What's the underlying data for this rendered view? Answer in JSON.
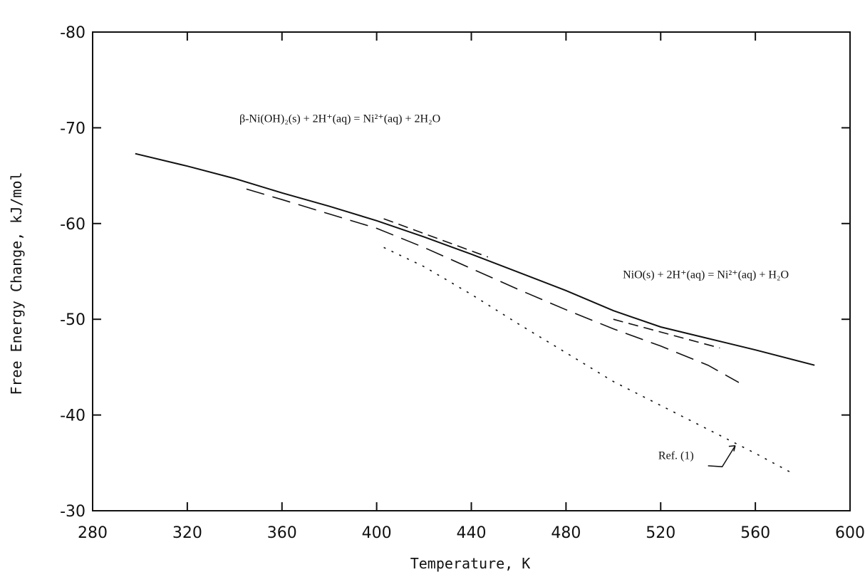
{
  "chart_data": {
    "type": "line",
    "xlabel": "Temperature, K",
    "ylabel": "Free Energy Change, kJ/mol",
    "xlim": [
      280,
      600
    ],
    "ylim": [
      -80,
      -30
    ],
    "y_axis_inverted": true,
    "x_ticks": [
      280,
      320,
      360,
      400,
      440,
      480,
      520,
      560,
      600
    ],
    "y_ticks": [
      -80,
      -70,
      -60,
      -50,
      -40,
      -30
    ],
    "grid": false,
    "legend": "none",
    "series": [
      {
        "style": "solid",
        "x": [
          298,
          320,
          340,
          360,
          380,
          400,
          420,
          440,
          460,
          480,
          500,
          520,
          540,
          560,
          585
        ],
        "y": [
          -67.3,
          -66.0,
          -64.7,
          -63.2,
          -61.8,
          -60.3,
          -58.6,
          -56.8,
          -54.9,
          -53.0,
          -50.9,
          -49.2,
          -48.0,
          -46.8,
          -45.2
        ]
      },
      {
        "style": "dashed",
        "x": [
          345,
          360,
          380,
          400,
          420,
          440,
          460,
          480,
          500,
          520,
          540,
          553
        ],
        "y": [
          -63.6,
          -62.5,
          -61.0,
          -59.5,
          -57.5,
          -55.3,
          -53.1,
          -51.0,
          -49.0,
          -47.2,
          -45.2,
          -43.4
        ]
      },
      {
        "style": "dotted",
        "x": [
          403,
          420,
          440,
          460,
          480,
          500,
          520,
          540,
          560,
          575
        ],
        "y": [
          -57.5,
          -55.5,
          -52.6,
          -49.5,
          -46.5,
          -43.5,
          -41.0,
          -38.5,
          -36.0,
          -34.0
        ]
      },
      {
        "style": "dashed-short",
        "x": [
          403,
          447
        ],
        "y": [
          -60.5,
          -56.5
        ]
      },
      {
        "style": "dashed-short",
        "x": [
          500,
          545
        ],
        "y": [
          -50.0,
          -47.0
        ]
      }
    ],
    "annotations": [
      {
        "text": "β-Ni(OH)₂(s) + 2H⁺(aq) = Ni²⁺(aq) + 2H₂O",
        "x": 342,
        "y": -70.6
      },
      {
        "text": "NiO(s) + 2H⁺(aq) = Ni²⁺(aq) + H₂O",
        "x": 504,
        "y": -54.3
      },
      {
        "text": "Ref. (1)",
        "x": 519,
        "y": -35.4
      }
    ]
  }
}
